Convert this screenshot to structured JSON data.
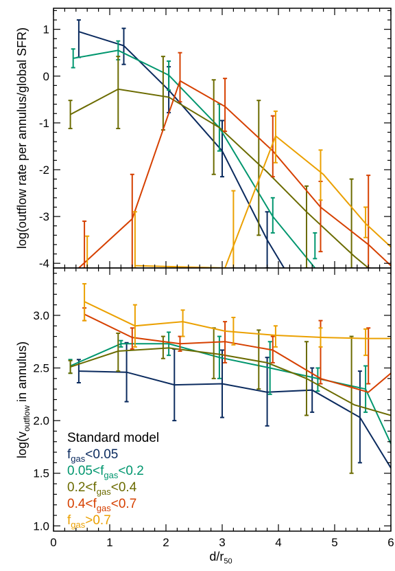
{
  "chart_data": [
    {
      "type": "line",
      "panel": "top",
      "ylabel": "log(outflow rate per annulus/global SFR)",
      "xlabel": "",
      "xlim": [
        0,
        6
      ],
      "ylim": [
        -4.1,
        1.45
      ],
      "yticks": [
        "1",
        "0",
        "-1",
        "-2",
        "-3",
        "-4"
      ],
      "ytick_values": [
        1,
        0,
        -1,
        -2,
        -3,
        -4
      ],
      "series": [
        {
          "color": "#0a2a5e",
          "x": [
            0.45,
            1.25,
            2.05,
            3.0,
            3.8,
            4.1
          ],
          "y": [
            0.95,
            0.65,
            -0.3,
            -1.6,
            -3.5,
            -4.1
          ],
          "err": [
            [
              0.45,
              0.4,
              1.2
            ],
            [
              1.25,
              0.25,
              1.02
            ],
            [
              2.05,
              -0.78,
              0.2
            ],
            [
              3.0,
              -2.15,
              -0.95
            ],
            [
              3.8,
              -4.1,
              -2.9
            ]
          ]
        },
        {
          "color": "#00966e",
          "x": [
            0.35,
            1.15,
            2.05,
            2.95,
            3.9,
            4.65
          ],
          "y": [
            0.38,
            0.55,
            0.02,
            -1.1,
            -3.0,
            -4.1
          ],
          "err": [
            [
              0.35,
              0.18,
              0.58
            ],
            [
              1.15,
              0.35,
              0.75
            ],
            [
              2.05,
              -0.3,
              0.32
            ],
            [
              2.95,
              -1.6,
              -0.6
            ],
            [
              3.9,
              -3.35,
              -2.6
            ],
            [
              4.65,
              -3.9,
              -3.35
            ]
          ]
        },
        {
          "color": "#6b6b00",
          "x": [
            0.3,
            1.15,
            2.05,
            2.95,
            3.8,
            4.5,
            5.35,
            5.6
          ],
          "y": [
            -0.82,
            -0.28,
            -0.45,
            -1.1,
            -2.05,
            -2.9,
            -3.85,
            -4.1
          ],
          "err": [
            [
              0.3,
              -1.12,
              -0.52
            ],
            [
              1.15,
              -1.12,
              0.42
            ],
            [
              1.95,
              -1.15,
              0.42
            ],
            [
              2.85,
              -2.1,
              -0.08
            ],
            [
              3.65,
              -3.4,
              -0.52
            ],
            [
              4.5,
              -4.1,
              -2.35
            ],
            [
              5.3,
              -4.1,
              -2.2
            ]
          ]
        },
        {
          "color": "#d64000",
          "x": [
            0.45,
            1.4,
            2.25,
            3.05,
            3.9,
            4.75,
            5.6,
            6.0
          ],
          "y": [
            -4.1,
            -3.05,
            -0.1,
            -0.65,
            -1.6,
            -2.8,
            -3.6,
            -4.05
          ],
          "err": [
            [
              0.55,
              -4.1,
              -3.1
            ],
            [
              1.4,
              -4.1,
              -2.1
            ],
            [
              2.25,
              -0.55,
              0.5
            ],
            [
              3.05,
              -1.18,
              -0.05
            ],
            [
              3.9,
              -2.15,
              -0.85
            ],
            [
              4.75,
              -3.75,
              -2.25
            ],
            [
              5.6,
              -4.1,
              -2.12
            ]
          ]
        },
        {
          "color": "#eba000",
          "x": [
            1.45,
            3.05,
            3.95,
            4.8,
            5.55,
            6.0
          ],
          "y": [
            -4.05,
            -4.1,
            -1.28,
            -2.1,
            -3.15,
            -3.65
          ],
          "err": [
            [
              0.6,
              -4.1,
              -3.42
            ],
            [
              1.45,
              -4.1,
              -2.9
            ],
            [
              3.2,
              -4.1,
              -2.45
            ],
            [
              3.95,
              -1.85,
              -0.75
            ],
            [
              4.75,
              -2.65,
              -1.58
            ],
            [
              5.55,
              -3.45,
              -2.8
            ]
          ]
        }
      ]
    },
    {
      "type": "line",
      "panel": "bottom",
      "ylabel": "log(v",
      "ylabel_sub": "outflow",
      "ylabel_tail": " in annulus)",
      "xlabel": "d/r",
      "xlabel_sub": "50",
      "xlim": [
        0,
        6
      ],
      "ylim": [
        0.95,
        3.45
      ],
      "xticks": [
        "0",
        "1",
        "2",
        "3",
        "4",
        "5",
        "6"
      ],
      "xtick_values": [
        0,
        1,
        2,
        3,
        4,
        5,
        6
      ],
      "yticks": [
        "1.0",
        "1.5",
        "2.0",
        "2.5",
        "3.0"
      ],
      "ytick_values": [
        1.0,
        1.5,
        2.0,
        2.5,
        3.0
      ],
      "series": [
        {
          "color": "#0a2a5e",
          "x": [
            0.45,
            1.3,
            2.15,
            3.0,
            3.8,
            4.6,
            5.45,
            6.0
          ],
          "y": [
            2.47,
            2.46,
            2.34,
            2.35,
            2.27,
            2.29,
            2.03,
            1.55
          ],
          "err": [
            [
              0.45,
              2.36,
              2.58
            ],
            [
              1.3,
              2.18,
              2.74
            ],
            [
              2.15,
              2.0,
              2.68
            ],
            [
              3.0,
              2.03,
              2.67
            ],
            [
              3.8,
              1.95,
              2.6
            ],
            [
              4.6,
              2.08,
              2.5
            ],
            [
              5.45,
              1.6,
              2.47
            ]
          ]
        },
        {
          "color": "#00966e",
          "x": [
            0.3,
            1.2,
            2.05,
            2.95,
            3.85,
            4.7,
            5.55,
            6.0
          ],
          "y": [
            2.52,
            2.73,
            2.73,
            2.6,
            2.5,
            2.4,
            2.3,
            1.78
          ],
          "err": [
            [
              0.3,
              2.45,
              2.58
            ],
            [
              1.2,
              2.7,
              2.76
            ],
            [
              2.05,
              2.62,
              2.84
            ],
            [
              2.95,
              2.4,
              2.8
            ],
            [
              3.85,
              2.25,
              2.75
            ],
            [
              4.7,
              2.28,
              2.5
            ],
            [
              5.55,
              2.08,
              2.52
            ]
          ]
        },
        {
          "color": "#6b6b00",
          "x": [
            0.3,
            1.15,
            2.05,
            2.95,
            3.8,
            4.5,
            5.35,
            6.0
          ],
          "y": [
            2.51,
            2.66,
            2.69,
            2.63,
            2.55,
            2.4,
            2.15,
            2.05
          ],
          "err": [
            [
              0.3,
              2.45,
              2.57
            ],
            [
              1.15,
              2.47,
              2.83
            ],
            [
              1.95,
              2.59,
              2.8
            ],
            [
              2.85,
              2.4,
              2.88
            ],
            [
              3.65,
              2.3,
              2.86
            ],
            [
              4.5,
              2.05,
              2.75
            ],
            [
              5.3,
              1.5,
              2.8
            ]
          ]
        },
        {
          "color": "#d64000",
          "x": [
            0.55,
            1.4,
            2.25,
            3.05,
            3.9,
            4.75,
            5.6,
            6.0
          ],
          "y": [
            3.01,
            2.79,
            2.73,
            2.75,
            2.67,
            2.4,
            2.27,
            2.45
          ],
          "err": [
            [
              0.55,
              2.95,
              3.07
            ],
            [
              1.4,
              2.68,
              2.88
            ],
            [
              2.25,
              2.66,
              2.8
            ],
            [
              3.05,
              2.55,
              2.94
            ],
            [
              3.9,
              2.55,
              2.8
            ],
            [
              4.75,
              2.35,
              2.95
            ],
            [
              5.6,
              2.35,
              2.88
            ]
          ]
        },
        {
          "color": "#eba000",
          "x": [
            0.55,
            1.45,
            2.3,
            3.05,
            3.95,
            4.8,
            5.55,
            6.0
          ],
          "y": [
            3.13,
            2.9,
            2.94,
            2.85,
            2.81,
            2.79,
            2.78,
            2.78
          ],
          "err": [
            [
              0.55,
              2.95,
              3.3
            ],
            [
              1.45,
              2.7,
              3.1
            ],
            [
              2.3,
              2.8,
              3.05
            ],
            [
              3.2,
              2.72,
              2.98
            ],
            [
              3.95,
              2.7,
              2.9
            ],
            [
              4.75,
              2.7,
              2.88
            ],
            [
              5.55,
              2.62,
              2.87
            ]
          ]
        }
      ],
      "legend": {
        "placement": "bottom-left",
        "title": "Standard model",
        "entries": [
          {
            "color": "#0a2a5e",
            "pre": "f",
            "sub": "gas",
            "post": "<0.05"
          },
          {
            "color": "#00966e",
            "pre": "0.05<f",
            "sub": "gas",
            "post": "<0.2"
          },
          {
            "color": "#6b6b00",
            "pre": "0.2<f",
            "sub": "gas",
            "post": "<0.4"
          },
          {
            "color": "#d64000",
            "pre": "0.4<f",
            "sub": "gas",
            "post": "<0.7"
          },
          {
            "color": "#eba000",
            "pre": "f",
            "sub": "gas",
            "post": ">0.7"
          }
        ]
      }
    }
  ]
}
